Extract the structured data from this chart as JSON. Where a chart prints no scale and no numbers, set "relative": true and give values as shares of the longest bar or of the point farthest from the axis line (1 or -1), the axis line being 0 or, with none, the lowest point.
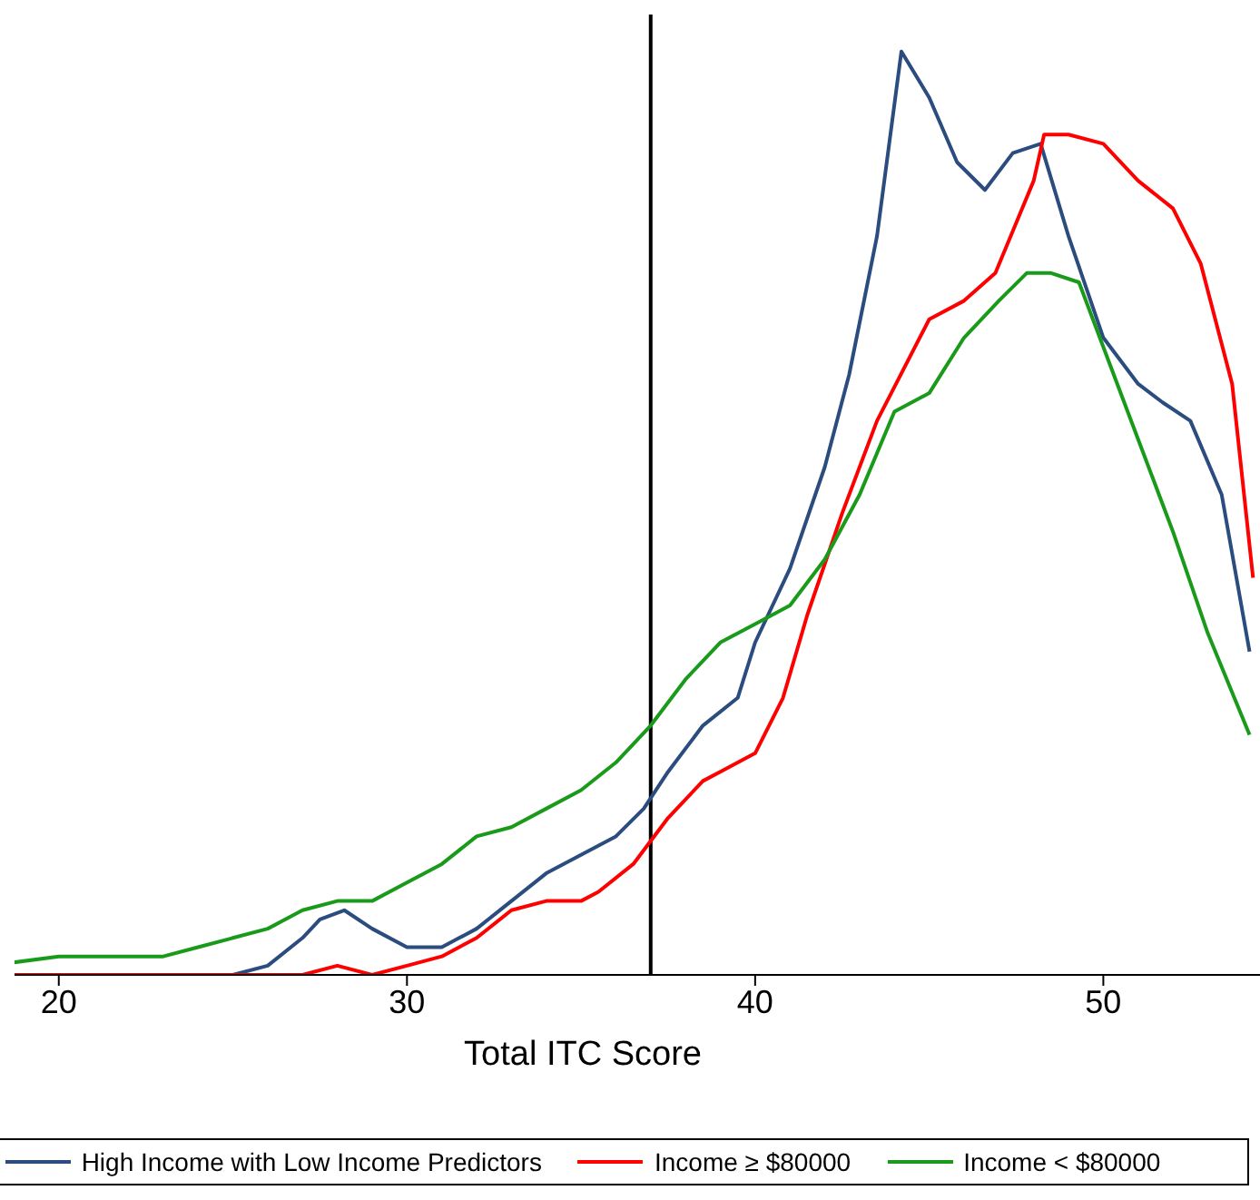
{
  "chart_data": {
    "type": "line",
    "xlabel": "Total ITC Score",
    "relative": true,
    "xlim": [
      15.6,
      54.5
    ],
    "xticks": [
      20,
      30,
      40,
      50
    ],
    "legend": "bottom",
    "marker": "none",
    "line_style": "solid",
    "ref_lines": [
      {
        "axis": "x",
        "value": 37,
        "color": "#000000"
      }
    ],
    "series": [
      {
        "name": "High Income with Low Income Predictors",
        "color": "#2b4c7e",
        "x": [
          16,
          20,
          22,
          24,
          25,
          26,
          27,
          27.5,
          28.2,
          29,
          30,
          31,
          32,
          33,
          34,
          35,
          36,
          36.8,
          37.5,
          38.5,
          39.5,
          40,
          41,
          42,
          42.7,
          43.5,
          44.2,
          45,
          45.8,
          46.6,
          47.4,
          48.2,
          49,
          50,
          51,
          51.7,
          52.5,
          53.4,
          54.2
        ],
        "values": [
          0,
          0,
          0,
          0,
          0,
          0.01,
          0.04,
          0.06,
          0.07,
          0.05,
          0.03,
          0.03,
          0.05,
          0.08,
          0.11,
          0.13,
          0.15,
          0.18,
          0.22,
          0.27,
          0.3,
          0.36,
          0.44,
          0.55,
          0.65,
          0.8,
          1,
          0.95,
          0.88,
          0.85,
          0.89,
          0.9,
          0.8,
          0.69,
          0.64,
          0.62,
          0.6,
          0.52,
          0.35
        ]
      },
      {
        "name": "Income ≥ $80000",
        "color": "#ff0000",
        "x": [
          16,
          22,
          26,
          27,
          28,
          29,
          30,
          31,
          32,
          33,
          34,
          35,
          35.5,
          36.5,
          37.5,
          38.5,
          39,
          40,
          40.8,
          41.5,
          42.5,
          43.5,
          45,
          46,
          46.9,
          48,
          48.3,
          49,
          50,
          51,
          52,
          52.8,
          53.7,
          54.3
        ],
        "values": [
          0,
          0,
          0,
          0,
          0.01,
          0,
          0.01,
          0.02,
          0.04,
          0.07,
          0.08,
          0.08,
          0.09,
          0.12,
          0.17,
          0.21,
          0.22,
          0.24,
          0.3,
          0.39,
          0.5,
          0.6,
          0.71,
          0.73,
          0.76,
          0.86,
          0.91,
          0.91,
          0.9,
          0.86,
          0.83,
          0.77,
          0.64,
          0.43
        ]
      },
      {
        "name": "Income < $80000",
        "color": "#1a9a1a",
        "x": [
          16,
          18,
          20,
          21,
          22,
          23,
          24,
          25,
          26,
          27,
          28,
          29,
          30,
          31,
          32,
          33,
          34,
          35,
          36,
          37,
          38,
          39,
          40,
          41,
          42,
          43,
          44,
          45,
          46,
          47,
          47.8,
          48.5,
          49.3,
          50,
          51,
          52,
          53,
          54.2
        ],
        "values": [
          0.01,
          0.01,
          0.02,
          0.02,
          0.02,
          0.02,
          0.03,
          0.04,
          0.05,
          0.07,
          0.08,
          0.08,
          0.1,
          0.12,
          0.15,
          0.16,
          0.18,
          0.2,
          0.23,
          0.27,
          0.32,
          0.36,
          0.38,
          0.4,
          0.45,
          0.52,
          0.61,
          0.63,
          0.69,
          0.73,
          0.76,
          0.76,
          0.75,
          0.68,
          0.58,
          0.48,
          0.37,
          0.26
        ]
      }
    ]
  }
}
